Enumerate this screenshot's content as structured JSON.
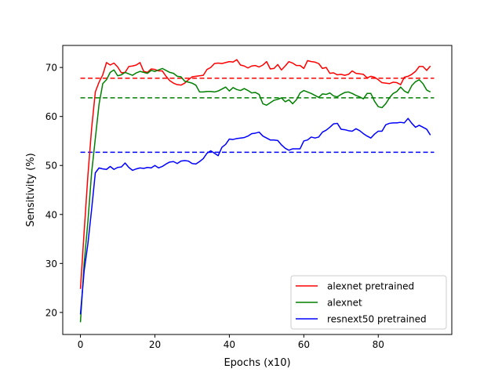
{
  "chart_data": {
    "type": "line",
    "title": "",
    "xlabel": "Epochs (x10)",
    "ylabel": "Sensitivity (%)",
    "xlim": [
      -4.75,
      99.75
    ],
    "ylim": [
      15.5,
      74.5
    ],
    "xticks": [
      0,
      20,
      40,
      60,
      80
    ],
    "yticks": [
      20,
      30,
      40,
      50,
      60,
      70
    ],
    "grid": false,
    "legend_position": "lower-right",
    "series": [
      {
        "name": "alexnet pretrained",
        "color": "#ff0000",
        "x_start": 0,
        "values": [
          24.8,
          36.5,
          47.9,
          57.5,
          65.0,
          67.0,
          68.5,
          71.0,
          70.5,
          70.9,
          70.1,
          68.9,
          69.0,
          70.2,
          70.3,
          70.5,
          71.0,
          69.2,
          69.0,
          69.7,
          69.6,
          69.3,
          69.3,
          68.2,
          67.3,
          66.8,
          66.5,
          66.4,
          66.8,
          67.5,
          68.1,
          68.2,
          68.3,
          68.4,
          69.6,
          70.0,
          70.8,
          70.9,
          70.8,
          71.0,
          71.2,
          71.1,
          71.6,
          70.5,
          70.3,
          69.9,
          70.3,
          70.4,
          70.1,
          70.5,
          71.2,
          69.7,
          69.8,
          70.6,
          69.5,
          70.3,
          71.2,
          70.9,
          70.4,
          70.4,
          69.8,
          71.4,
          71.2,
          71.1,
          70.8,
          69.8,
          70.0,
          68.8,
          68.9,
          68.5,
          68.6,
          68.4,
          68.6,
          69.3,
          68.8,
          68.7,
          68.6,
          67.9,
          68.2,
          68.0,
          67.5,
          66.9,
          66.8,
          66.7,
          67.0,
          66.9,
          66.5,
          68.0,
          68.2,
          68.6,
          69.2,
          70.2,
          70.2,
          69.4,
          70.3
        ]
      },
      {
        "name": "alexnet",
        "color": "#008000",
        "x_start": 0,
        "values": [
          18.0,
          30.0,
          38.5,
          48.5,
          55.5,
          62.5,
          66.7,
          67.5,
          69.0,
          69.5,
          68.3,
          68.5,
          69.0,
          68.7,
          68.4,
          68.9,
          69.2,
          69.0,
          68.8,
          69.4,
          69.2,
          69.5,
          69.8,
          69.4,
          69.0,
          68.8,
          68.2,
          68.1,
          67.2,
          67.0,
          66.8,
          66.4,
          65.0,
          65.0,
          65.1,
          65.1,
          65.0,
          65.2,
          65.6,
          66.0,
          65.2,
          65.9,
          65.5,
          65.3,
          65.7,
          65.3,
          64.8,
          64.9,
          64.5,
          62.6,
          62.3,
          62.8,
          63.3,
          63.5,
          63.8,
          63.0,
          63.4,
          62.6,
          63.4,
          64.8,
          65.3,
          65.0,
          64.7,
          64.3,
          63.9,
          64.6,
          64.5,
          64.8,
          64.2,
          64.0,
          64.5,
          64.9,
          65.0,
          64.7,
          64.3,
          64.0,
          63.6,
          64.7,
          64.7,
          63.1,
          62.0,
          61.8,
          62.6,
          63.8,
          64.7,
          65.1,
          66.0,
          65.2,
          64.8,
          66.3,
          67.1,
          67.5,
          66.7,
          65.4,
          65.0
        ]
      },
      {
        "name": "resnext50 pretrained",
        "color": "#0000ff",
        "x_start": 0,
        "values": [
          19.6,
          28.5,
          34.0,
          41.0,
          48.5,
          49.5,
          49.3,
          49.2,
          49.8,
          49.2,
          49.6,
          49.7,
          50.5,
          49.6,
          49.0,
          49.3,
          49.5,
          49.4,
          49.6,
          49.5,
          50.0,
          49.5,
          49.8,
          50.3,
          50.7,
          50.8,
          50.4,
          50.9,
          51.0,
          50.9,
          50.4,
          50.3,
          50.8,
          51.4,
          52.5,
          53.0,
          52.5,
          52.0,
          53.7,
          54.3,
          55.4,
          55.3,
          55.5,
          55.6,
          55.7,
          56.0,
          56.5,
          56.6,
          56.8,
          56.0,
          55.6,
          55.2,
          55.2,
          55.1,
          54.2,
          53.5,
          53.1,
          53.4,
          53.4,
          53.4,
          55.0,
          55.2,
          55.8,
          55.6,
          55.8,
          56.8,
          57.2,
          57.8,
          58.5,
          58.6,
          57.4,
          57.3,
          57.1,
          57.0,
          57.5,
          57.1,
          56.5,
          56.0,
          55.6,
          56.4,
          57.0,
          57.0,
          58.3,
          58.6,
          58.7,
          58.7,
          58.8,
          58.7,
          59.6,
          58.6,
          57.8,
          58.2,
          57.8,
          57.4,
          56.2
        ]
      }
    ],
    "reference_lines": [
      {
        "color": "#ff0000",
        "y": 67.8,
        "x_range": [
          0,
          95
        ],
        "style": "dashed"
      },
      {
        "color": "#008000",
        "y": 63.8,
        "x_range": [
          0,
          95
        ],
        "style": "dashed"
      },
      {
        "color": "#0000ff",
        "y": 52.7,
        "x_range": [
          0,
          95
        ],
        "style": "dashed"
      }
    ]
  }
}
